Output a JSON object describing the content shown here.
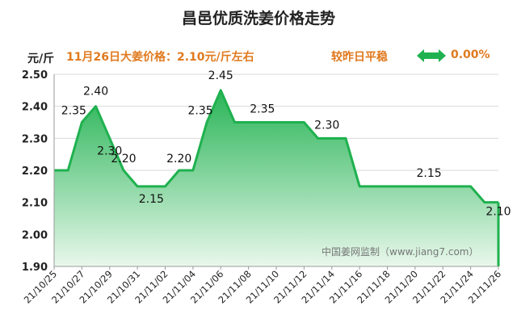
{
  "header": {
    "title": "昌邑优质洗姜价格走势",
    "unit": "元/斤",
    "price_info": "11月26日大姜价格：2.10元/斤左右",
    "change_label": "较昨日平稳",
    "change_icon": "double-arrow-icon",
    "change_pct": "0.00%"
  },
  "watermark": "中国姜网监制（www.jiang7.com）",
  "colors": {
    "line": "#1fb14f",
    "fill_top": "#1fb14f",
    "fill_bottom": "#e9f8ec",
    "accent": "#e07a1f",
    "arrow": "#1fb14f"
  },
  "chart_data": {
    "type": "area",
    "title": "昌邑优质洗姜价格走势",
    "ylabel": "元/斤",
    "ylim": [
      1.9,
      2.5
    ],
    "yticks": [
      "1.90",
      "2.00",
      "2.10",
      "2.20",
      "2.30",
      "2.40",
      "2.50"
    ],
    "xticks": [
      "21/10/25",
      "21/10/27",
      "21/10/29",
      "21/10/31",
      "21/11/02",
      "21/11/04",
      "21/11/06",
      "21/11/08",
      "21/11/10",
      "21/11/12",
      "21/11/14",
      "21/11/16",
      "21/11/18",
      "21/11/20",
      "21/11/22",
      "21/11/24",
      "21/11/26"
    ],
    "x": [
      "21/10/25",
      "21/10/26",
      "21/10/27",
      "21/10/28",
      "21/10/29",
      "21/10/30",
      "21/10/31",
      "21/11/01",
      "21/11/02",
      "21/11/03",
      "21/11/04",
      "21/11/05",
      "21/11/06",
      "21/11/07",
      "21/11/08",
      "21/11/09",
      "21/11/10",
      "21/11/11",
      "21/11/12",
      "21/11/13",
      "21/11/14",
      "21/11/15",
      "21/11/16",
      "21/11/17",
      "21/11/18",
      "21/11/19",
      "21/11/20",
      "21/11/21",
      "21/11/22",
      "21/11/23",
      "21/11/24",
      "21/11/25",
      "21/11/26"
    ],
    "values": [
      2.2,
      2.2,
      2.35,
      2.4,
      2.3,
      2.2,
      2.15,
      2.15,
      2.15,
      2.2,
      2.2,
      2.35,
      2.45,
      2.35,
      2.35,
      2.35,
      2.35,
      2.35,
      2.35,
      2.3,
      2.3,
      2.3,
      2.15,
      2.15,
      2.15,
      2.15,
      2.15,
      2.15,
      2.15,
      2.15,
      2.15,
      2.1,
      2.1
    ],
    "data_labels": [
      {
        "index": 2,
        "text": "2.35"
      },
      {
        "index": 3,
        "text": "2.40"
      },
      {
        "index": 4,
        "text": "2.30"
      },
      {
        "index": 5,
        "text": "2.20"
      },
      {
        "index": 7,
        "text": "2.15"
      },
      {
        "index": 9,
        "text": "2.20"
      },
      {
        "index": 11,
        "text": "2.35"
      },
      {
        "index": 12,
        "text": "2.45"
      },
      {
        "index": 15,
        "text": "2.35"
      },
      {
        "index": 20,
        "text": "2.30"
      },
      {
        "index": 27,
        "text": "2.15"
      },
      {
        "index": 32,
        "text": "2.10"
      }
    ],
    "grid": true
  }
}
